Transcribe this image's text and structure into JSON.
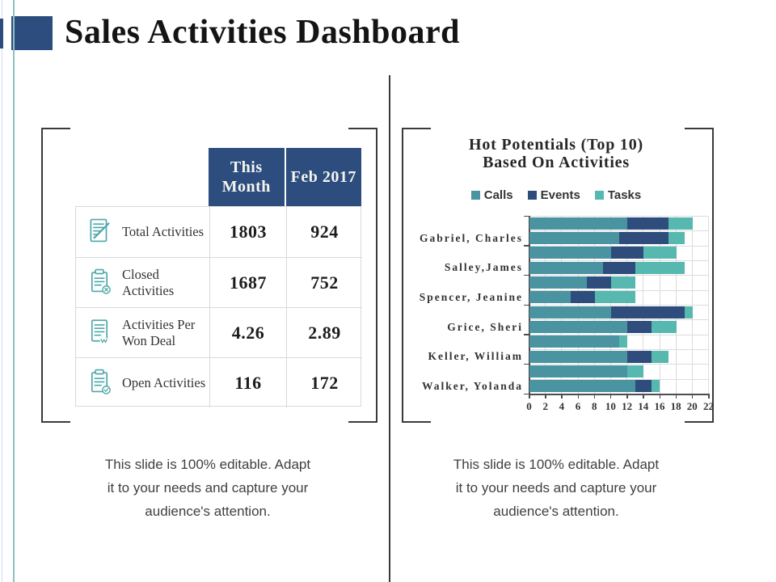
{
  "slide": {
    "title": "Sales Activities Dashboard"
  },
  "metrics_table": {
    "column_headers": [
      "This Month",
      "Feb 2017"
    ],
    "rows": [
      {
        "icon": "note-edit-icon",
        "label": "Total Activities",
        "values": [
          "1803",
          "924"
        ]
      },
      {
        "icon": "clipboard-x-icon",
        "label": "Closed Activities",
        "values": [
          "1687",
          "752"
        ]
      },
      {
        "icon": "document-won-deal-icon",
        "label": "Activities Per Won Deal",
        "values": [
          "4.26",
          "2.89"
        ]
      },
      {
        "icon": "clipboard-check-icon",
        "label": "Open Activities",
        "values": [
          "116",
          "172"
        ]
      }
    ]
  },
  "captions": {
    "left": {
      "lines": [
        "This slide is 100% editable. Adapt",
        "it to your needs and capture your",
        "audience's attention."
      ]
    },
    "right": {
      "lines": [
        "This slide is 100% editable. Adapt",
        "it to your needs and capture your",
        "audience's attention."
      ]
    }
  },
  "chart_data": {
    "type": "bar",
    "orientation": "horizontal",
    "stacked": true,
    "title_lines": [
      "Hot Potentials (Top 10)",
      "Based On Activities"
    ],
    "legend": [
      "Calls",
      "Events",
      "Tasks"
    ],
    "legend_position": "top",
    "categories": [
      "Gabriel, Charles",
      "Salley,James",
      "Spencer, Jeanine",
      "Grice, Sheri",
      "Keller, William",
      "Walker, Yolanda"
    ],
    "bars_per_category": 2,
    "xlim": [
      0,
      22
    ],
    "x_ticks": [
      0,
      2,
      4,
      6,
      8,
      10,
      12,
      14,
      16,
      18,
      20,
      22
    ],
    "grid": true,
    "series": [
      {
        "name": "Calls",
        "color": "#4a93a0",
        "values": [
          [
            12,
            11
          ],
          [
            10,
            9
          ],
          [
            7,
            5
          ],
          [
            10,
            12
          ],
          [
            11,
            12
          ],
          [
            12,
            13
          ]
        ]
      },
      {
        "name": "Events",
        "color": "#2e4d7c",
        "values": [
          [
            5,
            6
          ],
          [
            4,
            4
          ],
          [
            3,
            3
          ],
          [
            9,
            3
          ],
          [
            0,
            3
          ],
          [
            0,
            2
          ]
        ]
      },
      {
        "name": "Tasks",
        "color": "#57b8b0",
        "values": [
          [
            3,
            2
          ],
          [
            4,
            6
          ],
          [
            3,
            5
          ],
          [
            1,
            3
          ],
          [
            1,
            2
          ],
          [
            2,
            1
          ]
        ]
      }
    ]
  },
  "colors": {
    "accent_blue": "#2d4d7e",
    "icon_teal": "#4fa8a8",
    "frame": "#3a3a3a",
    "grid": "#dcdcdc",
    "axis": "#4d4d4d"
  }
}
